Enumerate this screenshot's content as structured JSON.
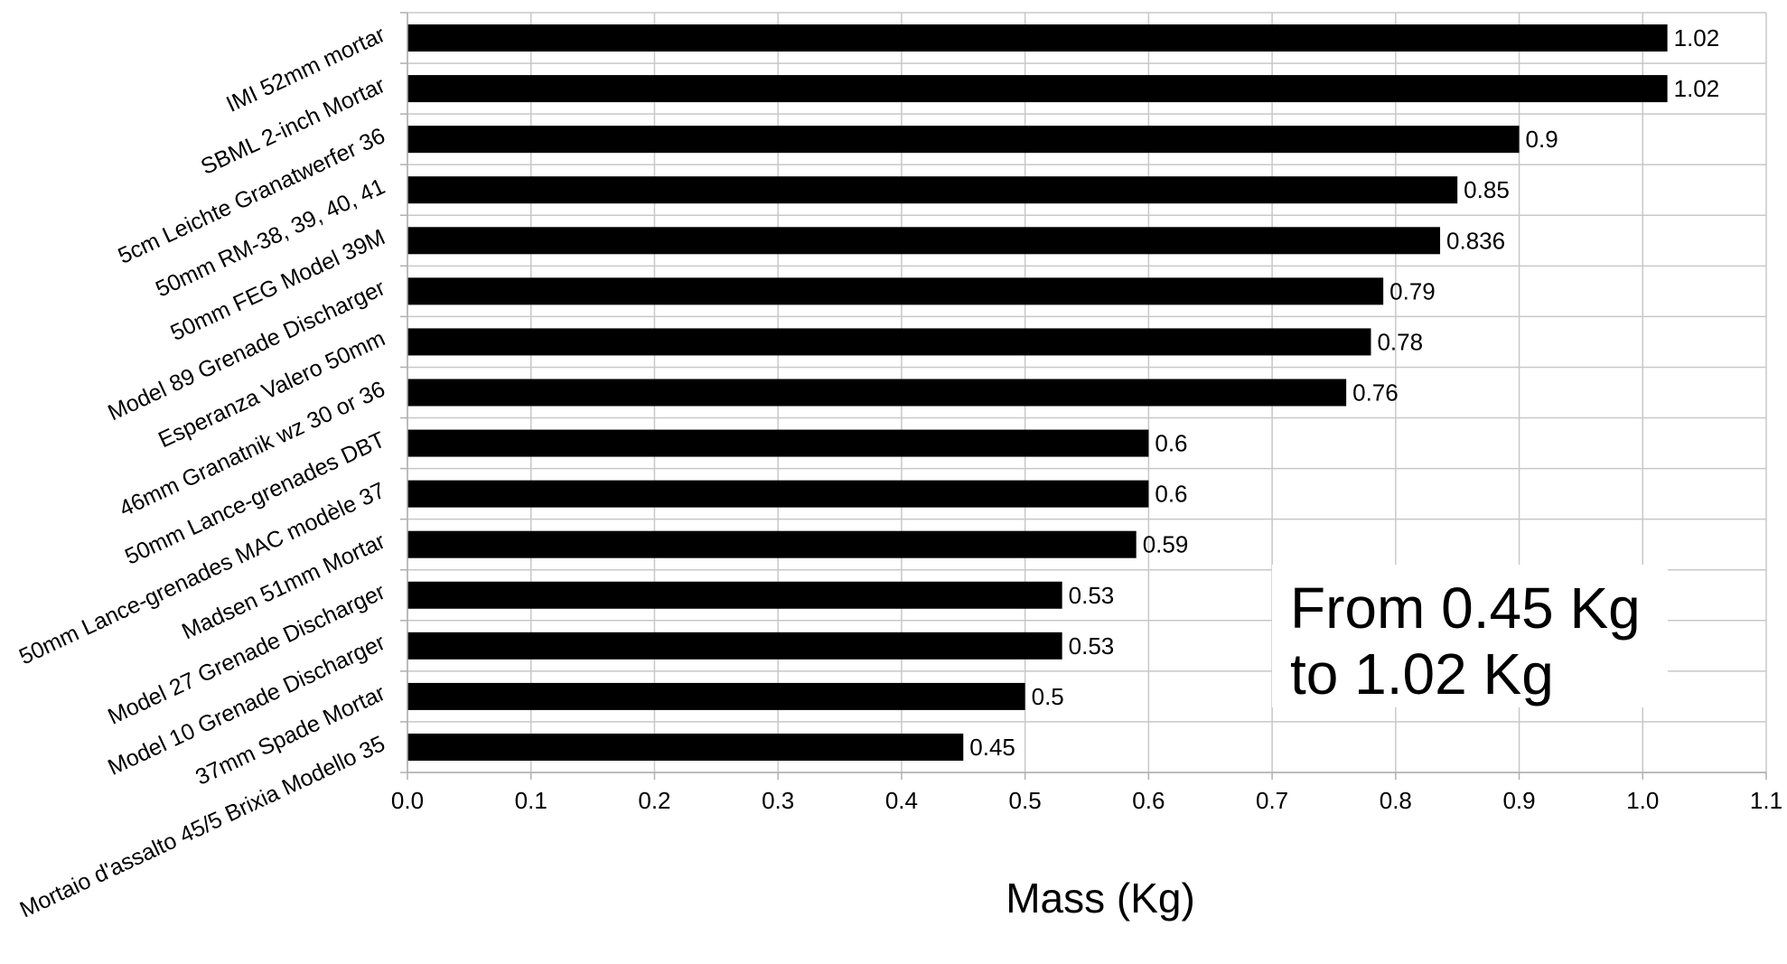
{
  "chart_data": {
    "type": "bar",
    "orientation": "horizontal",
    "categories": [
      "IMI 52mm mortar",
      "SBML 2-inch Mortar",
      "5cm Leichte Granatwerfer 36",
      "50mm RM-38, 39, 40, 41",
      "50mm FEG Model 39M",
      "Model 89 Grenade Discharger",
      "Esperanza Valero 50mm",
      "46mm Granatnik wz 30 or 36",
      "50mm Lance-grenades DBT",
      "50mm Lance-grenades MAC modèle 37",
      "Madsen 51mm Mortar",
      "Model 27 Grenade Discharger",
      "Model 10 Grenade Discharger",
      "37mm Spade Mortar",
      "Mortaio d'assalto 45/5 Brixia Modello 35"
    ],
    "values": [
      1.02,
      1.02,
      0.9,
      0.85,
      0.836,
      0.79,
      0.78,
      0.76,
      0.6,
      0.6,
      0.59,
      0.53,
      0.53,
      0.5,
      0.45
    ],
    "value_labels": [
      "1.02",
      "1.02",
      "0.9",
      "0.85",
      "0.836",
      "0.79",
      "0.78",
      "0.76",
      "0.6",
      "0.6",
      "0.59",
      "0.53",
      "0.53",
      "0.5",
      "0.45"
    ],
    "xlabel": "Mass (Kg)",
    "xlim": [
      0,
      1.1
    ],
    "xticks": [
      "0.0",
      "0.1",
      "0.2",
      "0.3",
      "0.4",
      "0.5",
      "0.6",
      "0.7",
      "0.8",
      "0.9",
      "1.0",
      "1.1"
    ],
    "grid": true,
    "bar_color": "#000000",
    "grid_color": "#c8c8c8",
    "annotation": [
      "From 0.45 Kg",
      "to 1.02 Kg"
    ]
  }
}
